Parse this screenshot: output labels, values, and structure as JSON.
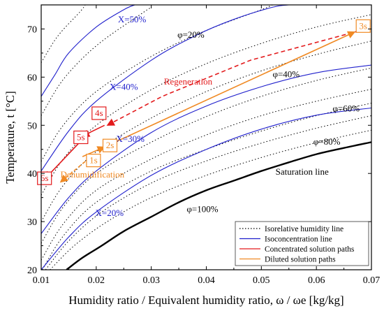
{
  "chart_data": {
    "type": "line",
    "xlabel": "Humidity ratio / Equivalent humidity ratio, ω / ωe [kg/kg]",
    "ylabel": "Temperature, t [°C]",
    "xlim": [
      0.01,
      0.07
    ],
    "ylim": [
      20,
      75
    ],
    "xticks": [
      0.01,
      0.02,
      0.03,
      0.04,
      0.05,
      0.06,
      0.07
    ],
    "xtick_labels": [
      "0.01",
      "0.02",
      "0.03",
      "0.04",
      "0.05",
      "0.06",
      "0.07"
    ],
    "yticks": [
      20,
      30,
      40,
      50,
      60,
      70
    ],
    "ytick_labels": [
      "20",
      "30",
      "40",
      "50",
      "60",
      "70"
    ],
    "grid": false,
    "legend_position": "bottom-right",
    "legend": [
      {
        "label": "Isorelative humidity line",
        "style": "dotted",
        "color": "#000000"
      },
      {
        "label": "Isoconcentration line",
        "style": "solid",
        "color": "#1f1fcc"
      },
      {
        "label": "Concentrated solution paths",
        "style": "solid",
        "color": "#e31a1c"
      },
      {
        "label": "Diluted solution paths",
        "style": "solid",
        "color": "#f08a24"
      }
    ],
    "saturation_line": {
      "label": "Saturation line",
      "points": [
        [
          0.0146,
          20
        ],
        [
          0.0175,
          22.5
        ],
        [
          0.021,
          25
        ],
        [
          0.025,
          28
        ],
        [
          0.03,
          31
        ],
        [
          0.035,
          34
        ],
        [
          0.04,
          36.5
        ],
        [
          0.045,
          38.5
        ],
        [
          0.05,
          40.5
        ],
        [
          0.055,
          42.3
        ],
        [
          0.06,
          44
        ],
        [
          0.065,
          45.3
        ],
        [
          0.07,
          46.5
        ]
      ]
    },
    "isorelative_humidity_lines": [
      {
        "points": [
          [
            0.0116,
            20
          ],
          [
            0.016,
            25
          ],
          [
            0.022,
            30
          ],
          [
            0.03,
            35
          ],
          [
            0.04,
            39.6
          ],
          [
            0.05,
            43.3
          ],
          [
            0.06,
            46.4
          ],
          [
            0.07,
            49
          ]
        ]
      },
      {
        "points": [
          [
            0.0108,
            20
          ],
          [
            0.015,
            26
          ],
          [
            0.021,
            32
          ],
          [
            0.03,
            38
          ],
          [
            0.04,
            42.6
          ],
          [
            0.05,
            46.3
          ],
          [
            0.06,
            49.4
          ],
          [
            0.07,
            52
          ]
        ]
      },
      {
        "points": [
          [
            0.0102,
            20
          ],
          [
            0.014,
            27
          ],
          [
            0.02,
            34
          ],
          [
            0.03,
            40.5
          ],
          [
            0.04,
            45
          ],
          [
            0.05,
            48.8
          ],
          [
            0.06,
            52
          ],
          [
            0.07,
            54.6
          ]
        ]
      },
      {
        "points": [
          [
            0.01,
            22
          ],
          [
            0.014,
            29.5
          ],
          [
            0.02,
            36.5
          ],
          [
            0.03,
            43
          ],
          [
            0.04,
            48
          ],
          [
            0.05,
            52
          ],
          [
            0.06,
            55
          ],
          [
            0.07,
            57.5
          ]
        ]
      },
      {
        "points": [
          [
            0.01,
            25.5
          ],
          [
            0.014,
            33
          ],
          [
            0.02,
            40
          ],
          [
            0.03,
            46.5
          ],
          [
            0.04,
            51.8
          ],
          [
            0.05,
            56
          ],
          [
            0.06,
            59.3
          ],
          [
            0.07,
            61.9
          ]
        ]
      },
      {
        "points": [
          [
            0.01,
            30
          ],
          [
            0.014,
            37.5
          ],
          [
            0.02,
            44.5
          ],
          [
            0.03,
            51.5
          ],
          [
            0.04,
            57
          ],
          [
            0.05,
            61.3
          ],
          [
            0.06,
            64.7
          ],
          [
            0.07,
            67.5
          ]
        ]
      },
      {
        "points": [
          [
            0.01,
            35.5
          ],
          [
            0.014,
            43
          ],
          [
            0.02,
            50
          ],
          [
            0.03,
            57.4
          ],
          [
            0.04,
            62.8
          ],
          [
            0.05,
            67
          ],
          [
            0.06,
            70.4
          ],
          [
            0.07,
            73
          ]
        ]
      },
      {
        "points": [
          [
            0.01,
            42.5
          ],
          [
            0.014,
            50
          ],
          [
            0.02,
            57
          ],
          [
            0.03,
            64.3
          ],
          [
            0.04,
            69.7
          ],
          [
            0.05,
            74
          ],
          [
            0.052,
            75
          ]
        ]
      },
      {
        "points": [
          [
            0.01,
            52
          ],
          [
            0.014,
            59.5
          ],
          [
            0.02,
            66.5
          ],
          [
            0.028,
            73
          ],
          [
            0.03,
            74.5
          ]
        ]
      },
      {
        "points": [
          [
            0.01,
            63
          ],
          [
            0.013,
            68.5
          ],
          [
            0.017,
            73.5
          ],
          [
            0.018,
            75
          ]
        ]
      }
    ],
    "isoconcentration_lines": [
      {
        "points": [
          [
            0.01,
            20
          ],
          [
            0.015,
            26.8
          ],
          [
            0.02,
            32
          ],
          [
            0.03,
            39.6
          ],
          [
            0.04,
            45
          ],
          [
            0.05,
            49.2
          ],
          [
            0.06,
            52.1
          ],
          [
            0.07,
            53.6
          ]
        ]
      },
      {
        "points": [
          [
            0.01,
            27.5
          ],
          [
            0.015,
            35
          ],
          [
            0.02,
            40.5
          ],
          [
            0.03,
            48.5
          ],
          [
            0.04,
            54
          ],
          [
            0.05,
            58
          ],
          [
            0.06,
            60.9
          ],
          [
            0.07,
            62.5
          ]
        ]
      },
      {
        "points": [
          [
            0.01,
            40.5
          ],
          [
            0.015,
            48.8
          ],
          [
            0.02,
            55
          ],
          [
            0.03,
            63.5
          ],
          [
            0.038,
            68.6
          ],
          [
            0.045,
            72
          ],
          [
            0.052,
            74.5
          ],
          [
            0.055,
            75
          ]
        ]
      },
      {
        "points": [
          [
            0.01,
            56
          ],
          [
            0.0125,
            60.5
          ],
          [
            0.015,
            65
          ],
          [
            0.02,
            70.4
          ],
          [
            0.025,
            74
          ],
          [
            0.027,
            75
          ]
        ]
      }
    ],
    "concentrated_solution_paths": [
      {
        "style": "dashed",
        "points": [
          [
            0.069,
            70
          ],
          [
            0.048,
            63.5
          ],
          [
            0.032,
            56
          ],
          [
            0.022,
            50
          ]
        ]
      },
      {
        "style": "solid",
        "points": [
          [
            0.0215,
            50
          ],
          [
            0.019,
            48.6
          ],
          [
            0.0175,
            47.6
          ]
        ]
      },
      {
        "style": "solid",
        "points": [
          [
            0.017,
            46.5
          ],
          [
            0.0107,
            38.9
          ]
        ]
      }
    ],
    "diluted_solution_paths": [
      {
        "style": "dashed",
        "points": [
          [
            0.018,
            42.5
          ],
          [
            0.0135,
            38.2
          ]
        ]
      },
      {
        "style": "solid",
        "points": [
          [
            0.0175,
            43.5
          ],
          [
            0.0215,
            45.5
          ]
        ]
      },
      {
        "style": "solid",
        "points": [
          [
            0.0215,
            45.5
          ],
          [
            0.067,
            69.4
          ]
        ]
      }
    ],
    "state_points": [
      {
        "label": "1s",
        "x": 0.0195,
        "y": 42.7,
        "color": "#f08a24"
      },
      {
        "label": "2s",
        "x": 0.0225,
        "y": 45.8,
        "color": "#f08a24"
      },
      {
        "label": "3s",
        "x": 0.0685,
        "y": 70.6,
        "color": "#f08a24"
      },
      {
        "label": "4s",
        "x": 0.0205,
        "y": 52.5,
        "color": "#e31a1c"
      },
      {
        "label": "5s",
        "x": 0.0172,
        "y": 47.5,
        "color": "#e31a1c"
      },
      {
        "label": "6s",
        "x": 0.0106,
        "y": 39.0,
        "color": "#e31a1c"
      }
    ],
    "annotations": [
      {
        "text": "X=50%",
        "x": 0.0265,
        "y": 71.8,
        "color": "#1f1fcc"
      },
      {
        "text": "X=40%",
        "x": 0.025,
        "y": 57.8,
        "color": "#1f1fcc"
      },
      {
        "text": "X=30%",
        "x": 0.0262,
        "y": 47.0,
        "color": "#1f1fcc"
      },
      {
        "text": "X=20%",
        "x": 0.0224,
        "y": 31.6,
        "color": "#1f1fcc"
      },
      {
        "text": "φ=20%",
        "x": 0.0372,
        "y": 68.6,
        "color": "#000000"
      },
      {
        "text": "φ=40%",
        "x": 0.0545,
        "y": 60.4,
        "color": "#000000"
      },
      {
        "text": "φ=60%",
        "x": 0.0654,
        "y": 53.3,
        "color": "#000000"
      },
      {
        "text": "φ=80%",
        "x": 0.0619,
        "y": 46.4,
        "color": "#000000"
      },
      {
        "text": "φ=100%",
        "x": 0.0393,
        "y": 32.4,
        "color": "#000000"
      },
      {
        "text": "Saturation line",
        "x": 0.0574,
        "y": 40.2,
        "color": "#000000"
      },
      {
        "text": "Regeneration",
        "x": 0.0367,
        "y": 58.9,
        "color": "#e31a1c"
      },
      {
        "text": "Dehumidification",
        "x": 0.0193,
        "y": 39.6,
        "color": "#f08a24"
      }
    ]
  }
}
